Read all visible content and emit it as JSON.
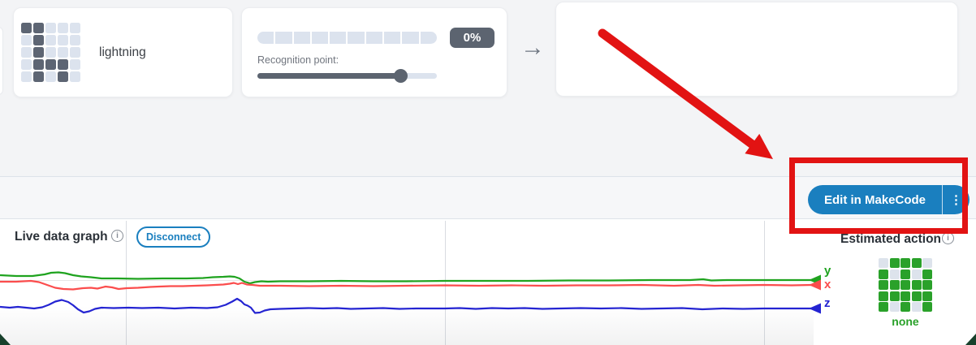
{
  "icons": {
    "info_glyph": "i",
    "kebab_glyph": "⋮",
    "arrow_glyph": "→"
  },
  "training": {
    "action_card": {
      "label": "lightning",
      "grid": {
        "pattern": [
          [
            1,
            1,
            0,
            0,
            0
          ],
          [
            0,
            1,
            0,
            0,
            0
          ],
          [
            0,
            1,
            0,
            0,
            0
          ],
          [
            0,
            1,
            1,
            1,
            0
          ],
          [
            0,
            1,
            0,
            1,
            0
          ]
        ],
        "on_color": "#5d6573",
        "off_color": "#dce3ee"
      }
    },
    "recognition_card": {
      "percent_label": "0%",
      "slider_label": "Recognition point:",
      "meter_segments": 10
    }
  },
  "toolbar": {
    "edit_button_label": "Edit in MakeCode"
  },
  "live_graph": {
    "title": "Live data graph",
    "disconnect_label": "Disconnect"
  },
  "estimated_action": {
    "title": "Estimated action",
    "value_label": "none",
    "grid": {
      "pattern": [
        [
          0,
          1,
          1,
          1,
          0
        ],
        [
          1,
          0,
          1,
          0,
          1
        ],
        [
          1,
          1,
          1,
          1,
          1
        ],
        [
          1,
          1,
          1,
          1,
          1
        ],
        [
          1,
          0,
          1,
          0,
          1
        ]
      ],
      "on_color": "#2aa12a",
      "off_color": "#dde3ec"
    }
  },
  "chart_data": {
    "type": "line",
    "title": "Live data graph",
    "xlabel": "time (live scroll, no ticks shown)",
    "ylabel": "acceleration (no ticks shown)",
    "grid": "3 vertical gridlines, 1 faint horizontal gridline",
    "legend_position": "inline arrowheads with y/x/z labels at right edge",
    "units": "page_pixels",
    "series": [
      {
        "name": "y",
        "color": "#1fa31f",
        "points": [
          [
            0,
            339
          ],
          [
            20,
            340
          ],
          [
            40,
            340
          ],
          [
            55,
            338
          ],
          [
            63,
            336
          ],
          [
            72,
            335.5
          ],
          [
            80,
            336.5
          ],
          [
            90,
            339
          ],
          [
            100,
            340.5
          ],
          [
            112,
            341.5
          ],
          [
            125,
            343
          ],
          [
            145,
            343
          ],
          [
            170,
            343.5
          ],
          [
            200,
            343
          ],
          [
            230,
            343
          ],
          [
            250,
            342.5
          ],
          [
            262,
            341.5
          ],
          [
            275,
            341
          ],
          [
            283,
            340.5
          ],
          [
            289,
            341
          ],
          [
            295,
            343
          ],
          [
            301,
            347
          ],
          [
            308,
            349
          ],
          [
            314,
            347.5
          ],
          [
            322,
            346.5
          ],
          [
            330,
            347
          ],
          [
            345,
            346.5
          ],
          [
            380,
            346.5
          ],
          [
            420,
            346
          ],
          [
            460,
            346.5
          ],
          [
            500,
            346.5
          ],
          [
            548,
            346
          ],
          [
            600,
            346
          ],
          [
            650,
            346
          ],
          [
            700,
            345.5
          ],
          [
            750,
            345.5
          ],
          [
            800,
            345
          ],
          [
            850,
            345
          ],
          [
            866,
            344
          ],
          [
            876,
            345.5
          ],
          [
            895,
            345
          ],
          [
            941,
            345
          ],
          [
            975,
            345
          ],
          [
            1000,
            345
          ]
        ]
      },
      {
        "name": "x",
        "color": "#fb4d4d",
        "points": [
          [
            0,
            347
          ],
          [
            20,
            347
          ],
          [
            38,
            346
          ],
          [
            48,
            347.5
          ],
          [
            58,
            351
          ],
          [
            68,
            354.5
          ],
          [
            78,
            356
          ],
          [
            90,
            356.5
          ],
          [
            102,
            355
          ],
          [
            112,
            354.5
          ],
          [
            120,
            355.5
          ],
          [
            130,
            353
          ],
          [
            138,
            354
          ],
          [
            146,
            356
          ],
          [
            156,
            355
          ],
          [
            170,
            354.5
          ],
          [
            185,
            353.5
          ],
          [
            196,
            353
          ],
          [
            210,
            352.5
          ],
          [
            225,
            352.5
          ],
          [
            240,
            352
          ],
          [
            255,
            351.5
          ],
          [
            265,
            351
          ],
          [
            275,
            350.5
          ],
          [
            283,
            349.5
          ],
          [
            288,
            348.5
          ],
          [
            293,
            350
          ],
          [
            298,
            348.5
          ],
          [
            304,
            350.5
          ],
          [
            311,
            351
          ],
          [
            320,
            352
          ],
          [
            345,
            352
          ],
          [
            380,
            352.5
          ],
          [
            420,
            352
          ],
          [
            460,
            352.5
          ],
          [
            500,
            352
          ],
          [
            548,
            351.5
          ],
          [
            590,
            352
          ],
          [
            630,
            351.5
          ],
          [
            670,
            352
          ],
          [
            710,
            351.5
          ],
          [
            750,
            351.5
          ],
          [
            790,
            351
          ],
          [
            830,
            352
          ],
          [
            860,
            351
          ],
          [
            880,
            352
          ],
          [
            910,
            351.5
          ],
          [
            941,
            351
          ],
          [
            975,
            351.5
          ],
          [
            1000,
            351
          ]
        ]
      },
      {
        "name": "z",
        "color": "#2424d2",
        "points": [
          [
            0,
            378
          ],
          [
            12,
            379
          ],
          [
            22,
            378
          ],
          [
            32,
            379
          ],
          [
            42,
            380
          ],
          [
            52,
            378.5
          ],
          [
            60,
            375.5
          ],
          [
            68,
            371.5
          ],
          [
            76,
            369.5
          ],
          [
            84,
            372
          ],
          [
            90,
            376
          ],
          [
            96,
            381
          ],
          [
            103,
            385
          ],
          [
            110,
            383.5
          ],
          [
            117,
            380.5
          ],
          [
            125,
            379
          ],
          [
            140,
            379.5
          ],
          [
            158,
            379
          ],
          [
            175,
            379.5
          ],
          [
            195,
            379
          ],
          [
            215,
            380
          ],
          [
            235,
            379
          ],
          [
            255,
            379.5
          ],
          [
            268,
            378.5
          ],
          [
            278,
            375.5
          ],
          [
            286,
            371.5
          ],
          [
            292,
            368
          ],
          [
            297,
            371
          ],
          [
            301,
            375
          ],
          [
            305,
            376.5
          ],
          [
            309,
            379
          ],
          [
            314,
            385.5
          ],
          [
            320,
            385
          ],
          [
            326,
            382.5
          ],
          [
            333,
            381
          ],
          [
            345,
            380.5
          ],
          [
            362,
            380
          ],
          [
            380,
            379.5
          ],
          [
            398,
            380
          ],
          [
            415,
            379.5
          ],
          [
            432,
            380.5
          ],
          [
            452,
            380
          ],
          [
            472,
            379.5
          ],
          [
            492,
            380.5
          ],
          [
            512,
            380
          ],
          [
            532,
            380
          ],
          [
            548,
            380
          ],
          [
            566,
            379.5
          ],
          [
            586,
            380.5
          ],
          [
            606,
            379.5
          ],
          [
            626,
            380
          ],
          [
            646,
            379.5
          ],
          [
            668,
            380.5
          ],
          [
            690,
            380
          ],
          [
            715,
            379.5
          ],
          [
            740,
            380
          ],
          [
            765,
            379.5
          ],
          [
            790,
            380.5
          ],
          [
            815,
            380
          ],
          [
            840,
            379.5
          ],
          [
            865,
            381
          ],
          [
            890,
            380
          ],
          [
            915,
            380.5
          ],
          [
            941,
            380
          ],
          [
            970,
            380
          ],
          [
            1000,
            380
          ]
        ]
      }
    ]
  },
  "annotation": {
    "color": "#e21313"
  },
  "footer": {
    "corner_color": "#17402b"
  }
}
